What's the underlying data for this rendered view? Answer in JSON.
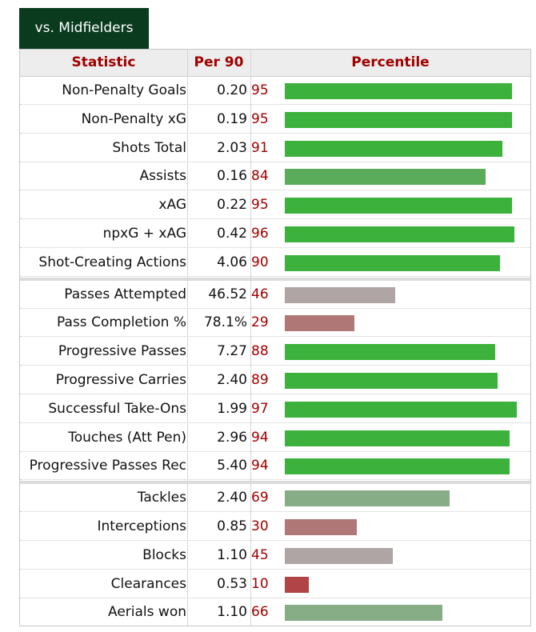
{
  "tab": {
    "label": "vs. Midfielders"
  },
  "headers": {
    "statistic": "Statistic",
    "per90": "Per 90",
    "percentile": "Percentile"
  },
  "colors": {
    "header_text": "#a00000",
    "tab_bg": "#0b3b1f",
    "bar_strong_green": "#3cb13c",
    "bar_light_green": "#5aab5a",
    "bar_sage": "#86ad86",
    "bar_grey": "#b0a5a5",
    "bar_rose": "#b07777",
    "bar_red": "#b14444"
  },
  "groups": [
    {
      "rows": [
        {
          "label": "Non-Penalty Goals",
          "per90": "0.20",
          "percentile": 95,
          "color": "#3cb13c"
        },
        {
          "label": "Non-Penalty xG",
          "per90": "0.19",
          "percentile": 95,
          "color": "#3cb13c"
        },
        {
          "label": "Shots Total",
          "per90": "2.03",
          "percentile": 91,
          "color": "#3cb13c"
        },
        {
          "label": "Assists",
          "per90": "0.16",
          "percentile": 84,
          "color": "#5aab5a"
        },
        {
          "label": "xAG",
          "per90": "0.22",
          "percentile": 95,
          "color": "#3cb13c"
        },
        {
          "label": "npxG + xAG",
          "per90": "0.42",
          "percentile": 96,
          "color": "#3cb13c"
        },
        {
          "label": "Shot-Creating Actions",
          "per90": "4.06",
          "percentile": 90,
          "color": "#3cb13c"
        }
      ]
    },
    {
      "rows": [
        {
          "label": "Passes Attempted",
          "per90": "46.52",
          "percentile": 46,
          "color": "#b0a5a5"
        },
        {
          "label": "Pass Completion %",
          "per90": "78.1%",
          "percentile": 29,
          "color": "#b07777"
        },
        {
          "label": "Progressive Passes",
          "per90": "7.27",
          "percentile": 88,
          "color": "#3cb13c"
        },
        {
          "label": "Progressive Carries",
          "per90": "2.40",
          "percentile": 89,
          "color": "#3cb13c"
        },
        {
          "label": "Successful Take-Ons",
          "per90": "1.99",
          "percentile": 97,
          "color": "#3cb13c"
        },
        {
          "label": "Touches (Att Pen)",
          "per90": "2.96",
          "percentile": 94,
          "color": "#3cb13c"
        },
        {
          "label": "Progressive Passes Rec",
          "per90": "5.40",
          "percentile": 94,
          "color": "#3cb13c"
        }
      ]
    },
    {
      "rows": [
        {
          "label": "Tackles",
          "per90": "2.40",
          "percentile": 69,
          "color": "#86ad86"
        },
        {
          "label": "Interceptions",
          "per90": "0.85",
          "percentile": 30,
          "color": "#b07777"
        },
        {
          "label": "Blocks",
          "per90": "1.10",
          "percentile": 45,
          "color": "#b0a5a5"
        },
        {
          "label": "Clearances",
          "per90": "0.53",
          "percentile": 10,
          "color": "#b14444"
        },
        {
          "label": "Aerials won",
          "per90": "1.10",
          "percentile": 66,
          "color": "#86ad86"
        }
      ]
    }
  ]
}
